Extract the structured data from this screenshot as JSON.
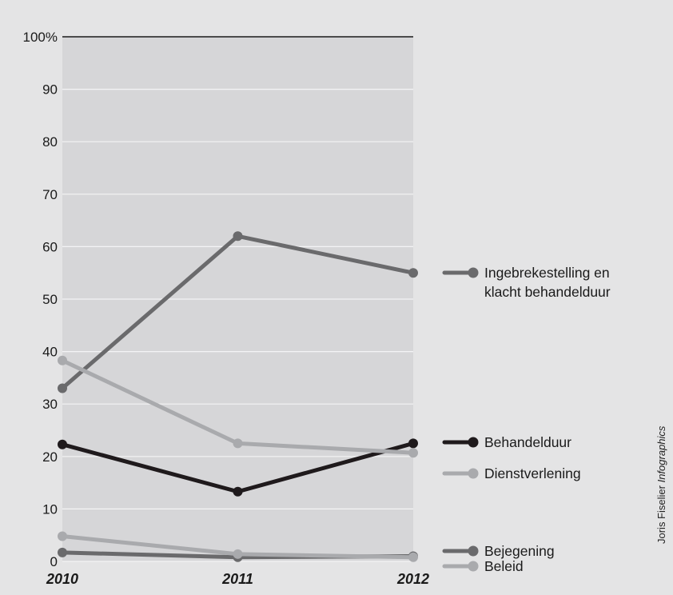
{
  "chart_data": {
    "type": "line",
    "x": [
      "2010",
      "2011",
      "2012"
    ],
    "ylim": [
      0,
      100
    ],
    "yticks": [
      "0",
      "10",
      "20",
      "30",
      "40",
      "50",
      "60",
      "70",
      "80",
      "90",
      "100%"
    ],
    "grid": true,
    "legend_placement": "right",
    "series": [
      {
        "name": "Ingebrekestelling en klacht behandelduur",
        "label_lines": [
          "Ingebrekestelling en",
          "klacht behandelduur"
        ],
        "values": [
          33,
          62,
          55
        ],
        "color": "#6a6a6c"
      },
      {
        "name": "Behandelduur",
        "label_lines": [
          "Behandelduur"
        ],
        "values": [
          22.3,
          13.3,
          22.5
        ],
        "color": "#1f1a1c"
      },
      {
        "name": "Dienstverlening",
        "label_lines": [
          "Dienstverlening"
        ],
        "values": [
          38.3,
          22.5,
          20.7
        ],
        "color": "#a9aaad"
      },
      {
        "name": "Bejegening",
        "label_lines": [
          "Bejegening"
        ],
        "values": [
          1.7,
          0.8,
          1.0
        ],
        "color": "#6a6a6c"
      },
      {
        "name": "Beleid",
        "label_lines": [
          "Beleid"
        ],
        "values": [
          4.8,
          1.4,
          0.8
        ],
        "color": "#a9aaad"
      }
    ]
  },
  "credit": {
    "author": "Joris Fiselier",
    "source": "Infographics"
  }
}
